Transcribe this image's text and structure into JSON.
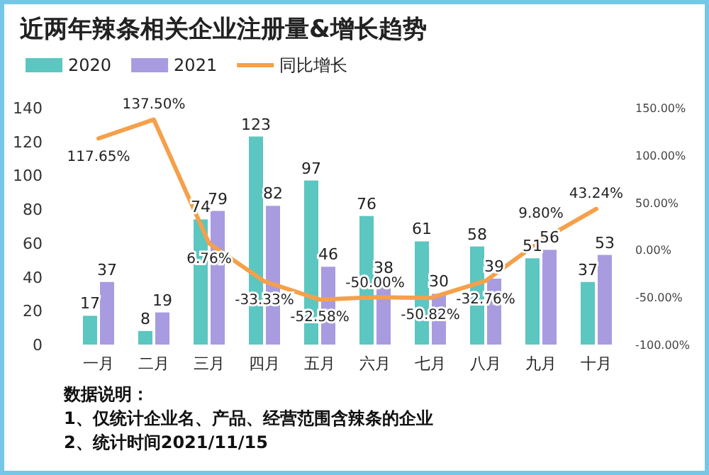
{
  "chart_data": {
    "type": "bar",
    "title": "近两年辣条相关企业注册量&增长趋势",
    "categories": [
      "一月",
      "二月",
      "三月",
      "四月",
      "五月",
      "六月",
      "七月",
      "八月",
      "九月",
      "十月"
    ],
    "series": [
      {
        "name": "2020",
        "color": "#5cc6c0",
        "values": [
          17,
          8,
          74,
          123,
          97,
          76,
          61,
          58,
          51,
          37
        ]
      },
      {
        "name": "2021",
        "color": "#a99be0",
        "values": [
          37,
          19,
          79,
          82,
          46,
          38,
          30,
          39,
          56,
          53
        ]
      },
      {
        "name": "同比增长",
        "type": "line",
        "axis": "y2",
        "color": "#f5a04a",
        "values": [
          117.65,
          137.5,
          6.76,
          -33.33,
          -52.58,
          -50,
          -50.82,
          -32.76,
          9.8,
          43.24
        ],
        "value_labels": [
          "117.65%",
          "137.50%",
          "6.76%",
          "-33.33%",
          "-52.58%",
          "-50.00%",
          "-50.82%",
          "-32.76%",
          "9.80%",
          "43.24%"
        ]
      }
    ],
    "ylim": [
      0,
      140
    ],
    "yticks": [
      0,
      20,
      40,
      60,
      80,
      100,
      120,
      140
    ],
    "y2lim": [
      -100,
      150
    ],
    "y2ticks": [
      {
        "value": -100,
        "label": "-100.00%"
      },
      {
        "value": -50,
        "label": "-50.00%"
      },
      {
        "value": 0,
        "label": "0.00%"
      },
      {
        "value": 50,
        "label": "50.00%"
      },
      {
        "value": 100,
        "label": "100.00%"
      },
      {
        "value": 150,
        "label": "150.00%"
      }
    ],
    "data_labels": true,
    "legend": "top left",
    "annotations": [
      "数据说明：",
      "1、仅统计企业名、产品、经营范围含辣条的企业",
      "2、统计时间2021/11/15"
    ]
  }
}
